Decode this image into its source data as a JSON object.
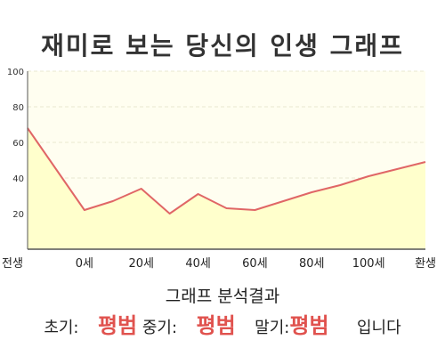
{
  "title": "재미로 보는 당신의 인생 그래프",
  "colors": {
    "line": "#e06666",
    "area_fill": "#ffffcc",
    "plot_bg": "#fffef0",
    "grid": "#e8e8d0",
    "accent_red": "#e0524e"
  },
  "chart_data": {
    "type": "area",
    "title": "재미로 보는 당신의 인생 그래프",
    "xlabel": "",
    "ylabel": "",
    "ylim": [
      0,
      100
    ],
    "yticks": [
      100,
      80,
      60,
      40,
      20
    ],
    "xticks": [
      "전생",
      "0세",
      "20세",
      "40세",
      "60세",
      "80세",
      "100세",
      "환생"
    ],
    "grid": true,
    "series": [
      {
        "x": [
          -20,
          0,
          10,
          20,
          30,
          40,
          50,
          60,
          70,
          80,
          90,
          100,
          110,
          120
        ],
        "y": [
          68,
          22,
          27,
          34,
          20,
          31,
          23,
          22,
          27,
          32,
          36,
          41,
          45,
          49
        ]
      }
    ]
  },
  "analysis": {
    "title": "그래프 분석결과",
    "early_label": "초기:",
    "early_value": "평범",
    "middle_label": "중기:",
    "middle_value": "평범",
    "late_label": "말기:",
    "late_value": "평범",
    "suffix": "입니다"
  }
}
